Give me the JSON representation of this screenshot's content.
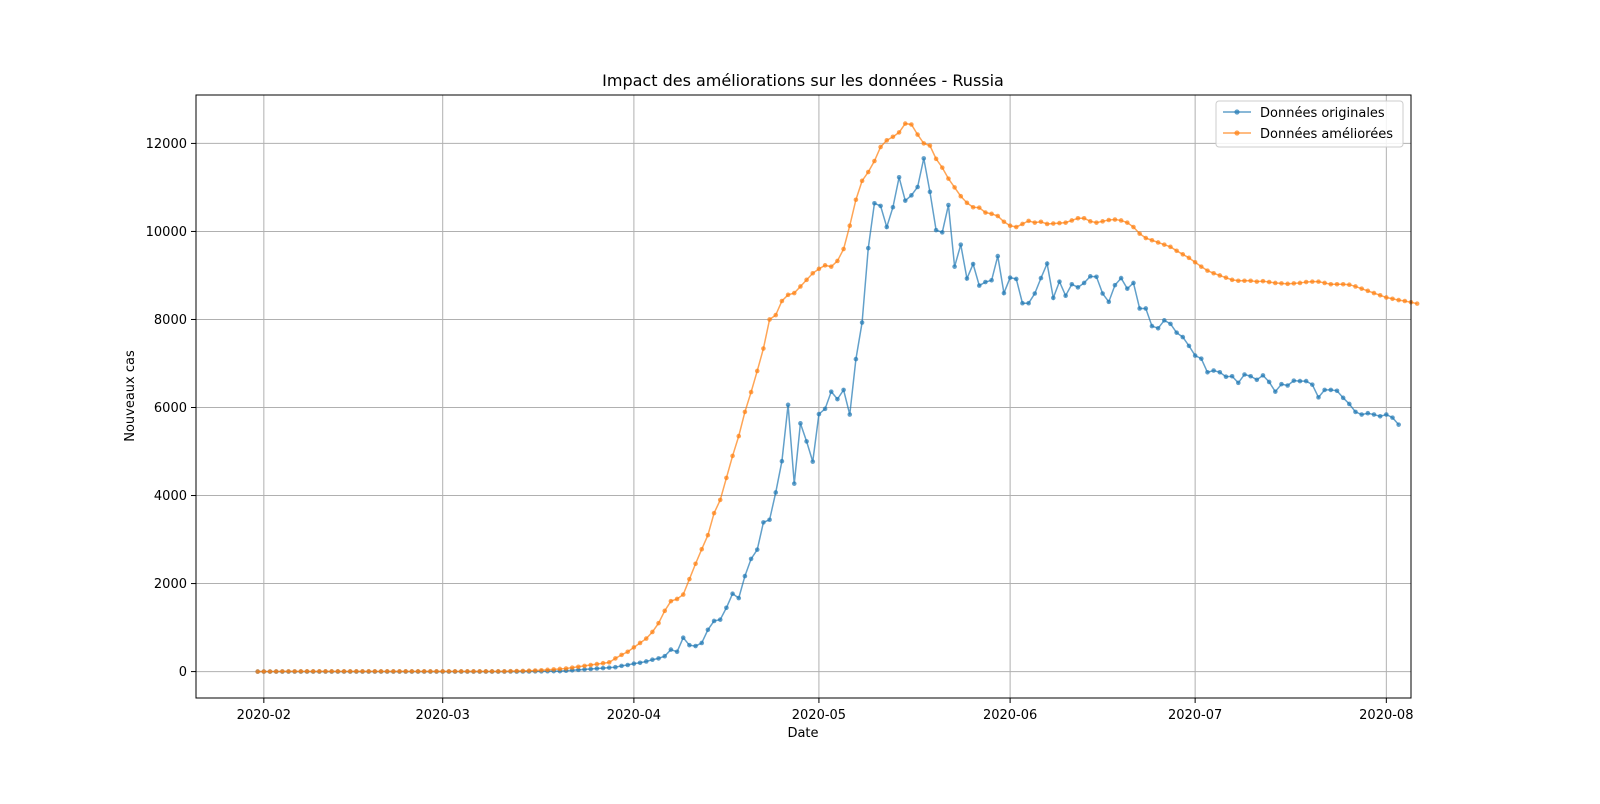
{
  "chart_data": {
    "type": "line",
    "title": "Impact des améliorations sur les données - Russia",
    "xlabel": "Date",
    "ylabel": "Nouveaux cas",
    "grid": true,
    "legend_position": "top-right",
    "x_start": "2020-01-31",
    "x_tick_labels": [
      "2020-02",
      "2020-03",
      "2020-04",
      "2020-05",
      "2020-06",
      "2020-07",
      "2020-08"
    ],
    "y_ticks": [
      0,
      2000,
      4000,
      6000,
      8000,
      10000,
      12000
    ],
    "ylim": [
      -600,
      13100
    ],
    "xlim": [
      "2020-01-21",
      "2020-08-05"
    ],
    "series": [
      {
        "name": "Données originales",
        "color": "#1f77b4",
        "values": [
          0,
          0,
          0,
          0,
          0,
          0,
          0,
          0,
          0,
          0,
          0,
          0,
          0,
          0,
          0,
          0,
          0,
          0,
          0,
          0,
          0,
          0,
          0,
          0,
          0,
          0,
          0,
          0,
          0,
          0,
          0,
          0,
          0,
          0,
          0,
          0,
          0,
          0,
          0,
          0,
          0,
          2,
          0,
          2,
          3,
          5,
          6,
          8,
          10,
          10,
          20,
          30,
          40,
          50,
          60,
          70,
          80,
          90,
          100,
          130,
          150,
          180,
          200,
          230,
          270,
          300,
          350,
          500,
          450,
          770,
          600,
          580,
          650,
          950,
          1150,
          1180,
          1450,
          1770,
          1670,
          2170,
          2560,
          2770,
          3390,
          3450,
          4070,
          4780,
          6060,
          4270,
          5640,
          5230,
          4770,
          5850,
          5970,
          6360,
          6190,
          6400,
          5840,
          7100,
          7930,
          9620,
          10640,
          10580,
          10100,
          10550,
          11230,
          10700,
          10820,
          11010,
          11660,
          10900,
          10030,
          9980,
          10600,
          9200,
          9700,
          8930,
          9260,
          8770,
          8850,
          8890,
          9440,
          8600,
          8950,
          8920,
          8370,
          8370,
          8590,
          8940,
          9270,
          8490,
          8860,
          8540,
          8800,
          8730,
          8830,
          8980,
          8970,
          8590,
          8400,
          8780,
          8940,
          8700,
          8830,
          8250,
          8250,
          7850,
          7800,
          7980,
          7900,
          7700,
          7600,
          7400,
          7180,
          7110,
          6800,
          6840,
          6800,
          6700,
          6710,
          6560,
          6750,
          6710,
          6630,
          6730,
          6580,
          6360,
          6530,
          6500,
          6610,
          6600,
          6600,
          6520,
          6230,
          6400,
          6400,
          6380,
          6220,
          6080,
          5900,
          5840,
          5870,
          5840,
          5800,
          5840,
          5770,
          5610
        ]
      },
      {
        "name": "Données améliorées",
        "color": "#ff7f0e",
        "values": [
          0,
          1,
          2,
          3,
          4,
          5,
          5,
          6,
          6,
          6,
          6,
          6,
          6,
          6,
          6,
          6,
          6,
          6,
          6,
          6,
          6,
          6,
          6,
          6,
          6,
          6,
          6,
          6,
          6,
          6,
          6,
          6,
          6,
          6,
          6,
          6,
          6,
          6,
          6,
          6,
          6,
          10,
          12,
          15,
          20,
          25,
          30,
          40,
          50,
          60,
          70,
          90,
          110,
          130,
          150,
          170,
          190,
          210,
          300,
          380,
          450,
          550,
          650,
          750,
          900,
          1100,
          1380,
          1600,
          1650,
          1750,
          2100,
          2450,
          2780,
          3100,
          3600,
          3900,
          4400,
          4900,
          5350,
          5900,
          6350,
          6830,
          7340,
          8000,
          8100,
          8420,
          8560,
          8600,
          8750,
          8900,
          9050,
          9150,
          9230,
          9200,
          9330,
          9600,
          10130,
          10720,
          11150,
          11350,
          11600,
          11920,
          12070,
          12150,
          12250,
          12450,
          12430,
          12200,
          12000,
          11950,
          11650,
          11450,
          11200,
          11000,
          10800,
          10650,
          10550,
          10540,
          10430,
          10400,
          10350,
          10220,
          10130,
          10100,
          10170,
          10240,
          10200,
          10220,
          10170,
          10180,
          10190,
          10200,
          10250,
          10300,
          10300,
          10230,
          10200,
          10230,
          10260,
          10270,
          10250,
          10200,
          10100,
          9950,
          9850,
          9800,
          9750,
          9700,
          9650,
          9560,
          9480,
          9400,
          9300,
          9200,
          9110,
          9050,
          9000,
          8950,
          8900,
          8880,
          8880,
          8880,
          8860,
          8870,
          8850,
          8830,
          8820,
          8810,
          8820,
          8830,
          8850,
          8860,
          8860,
          8830,
          8800,
          8800,
          8800,
          8790,
          8750,
          8700,
          8650,
          8600,
          8550,
          8500,
          8470,
          8440,
          8420,
          8390,
          8360
        ]
      }
    ]
  }
}
